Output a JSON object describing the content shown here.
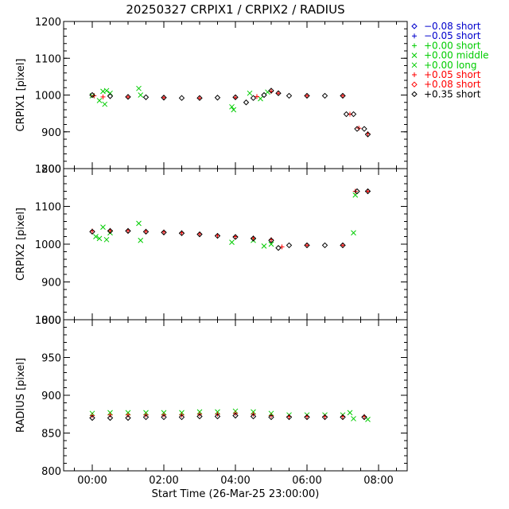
{
  "title": "20250327 CRPIX1 / CRPIX2 / RADIUS",
  "x_axis": {
    "label": "Start Time (26-Mar-25 23:00:00)",
    "range_hours": [
      -0.8,
      8.8
    ],
    "ticks": [
      {
        "hour": 0,
        "label": "00:00"
      },
      {
        "hour": 2,
        "label": "02:00"
      },
      {
        "hour": 4,
        "label": "04:00"
      },
      {
        "hour": 6,
        "label": "06:00"
      },
      {
        "hour": 8,
        "label": "08:00"
      }
    ]
  },
  "legend": {
    "placement": "right",
    "entries": [
      {
        "symbol": "◇",
        "label": "−0.08 short",
        "color": "#0000cc"
      },
      {
        "symbol": "+",
        "label": "−0.05 short",
        "color": "#0000cc"
      },
      {
        "symbol": "+",
        "label": "+0.00 short",
        "color": "#00cc00"
      },
      {
        "symbol": "×",
        "label": "+0.00 middle",
        "color": "#00cc00"
      },
      {
        "symbol": "×",
        "label": "+0.00 long",
        "color": "#00cc00"
      },
      {
        "symbol": "+",
        "label": "+0.05 short",
        "color": "#ff0000"
      },
      {
        "symbol": "◇",
        "label": "+0.08 short",
        "color": "#ff0000"
      },
      {
        "symbol": "◇",
        "label": "+0.35 short",
        "color": "#000000"
      }
    ]
  },
  "chart_data": [
    {
      "type": "scatter",
      "ylabel": "CRPIX1 [pixel]",
      "ylim": [
        800,
        1200
      ],
      "yticks": [
        800,
        900,
        1000,
        1100,
        1200
      ],
      "grid": false,
      "series": [
        {
          "name": "+0.00 middle",
          "color": "#00cc00",
          "points": [
            [
              0.0,
              998
            ],
            [
              0.2,
              985
            ],
            [
              0.3,
              1010
            ],
            [
              0.35,
              975
            ],
            [
              0.4,
              1012
            ],
            [
              0.5,
              1005
            ],
            [
              1.3,
              1018
            ],
            [
              1.35,
              1000
            ],
            [
              3.9,
              968
            ],
            [
              3.95,
              960
            ],
            [
              4.4,
              1005
            ],
            [
              4.7,
              990
            ],
            [
              4.9,
              1008
            ]
          ]
        },
        {
          "name": "+0.05 short",
          "color": "#ff0000",
          "points": [
            [
              0.05,
              998
            ],
            [
              0.3,
              995
            ],
            [
              1.0,
              995
            ],
            [
              2.0,
              993
            ],
            [
              3.0,
              992
            ],
            [
              4.0,
              993
            ],
            [
              4.6,
              996
            ],
            [
              5.0,
              1010
            ],
            [
              5.2,
              1005
            ],
            [
              6.0,
              998
            ],
            [
              7.0,
              998
            ],
            [
              7.2,
              948
            ],
            [
              7.45,
              910
            ],
            [
              7.7,
              895
            ]
          ]
        },
        {
          "name": "+0.35 short",
          "color": "#000000",
          "points": [
            [
              0.0,
              1000
            ],
            [
              0.5,
              997
            ],
            [
              1.0,
              995
            ],
            [
              1.5,
              994
            ],
            [
              2.0,
              993
            ],
            [
              2.5,
              992
            ],
            [
              3.0,
              992
            ],
            [
              3.5,
              993
            ],
            [
              4.0,
              994
            ],
            [
              4.3,
              980
            ],
            [
              4.5,
              992
            ],
            [
              4.8,
              1000
            ],
            [
              5.0,
              1012
            ],
            [
              5.2,
              1005
            ],
            [
              5.5,
              998
            ],
            [
              6.0,
              998
            ],
            [
              6.5,
              998
            ],
            [
              7.0,
              998
            ],
            [
              7.1,
              948
            ],
            [
              7.3,
              948
            ],
            [
              7.4,
              908
            ],
            [
              7.6,
              908
            ],
            [
              7.7,
              893
            ]
          ]
        }
      ]
    },
    {
      "type": "scatter",
      "ylabel": "CRPIX2 [pixel]",
      "ylim": [
        800,
        1200
      ],
      "yticks": [
        800,
        900,
        1000,
        1100,
        1200
      ],
      "grid": false,
      "series": [
        {
          "name": "+0.00 middle",
          "color": "#00cc00",
          "points": [
            [
              0.1,
              1020
            ],
            [
              0.2,
              1015
            ],
            [
              0.3,
              1045
            ],
            [
              0.4,
              1012
            ],
            [
              0.5,
              1030
            ],
            [
              1.3,
              1055
            ],
            [
              1.35,
              1010
            ],
            [
              3.9,
              1005
            ],
            [
              4.5,
              1010
            ],
            [
              4.8,
              995
            ],
            [
              5.0,
              1000
            ],
            [
              7.3,
              1030
            ],
            [
              7.35,
              1130
            ]
          ]
        },
        {
          "name": "+0.05 short",
          "color": "#ff0000",
          "points": [
            [
              0.0,
              1035
            ],
            [
              0.5,
              1036
            ],
            [
              1.0,
              1036
            ],
            [
              1.5,
              1034
            ],
            [
              2.0,
              1032
            ],
            [
              2.5,
              1030
            ],
            [
              3.0,
              1027
            ],
            [
              3.5,
              1023
            ],
            [
              4.0,
              1020
            ],
            [
              4.5,
              1016
            ],
            [
              5.0,
              1012
            ],
            [
              5.3,
              993
            ],
            [
              6.0,
              997
            ],
            [
              7.0,
              997
            ],
            [
              7.35,
              1140
            ],
            [
              7.7,
              1140
            ]
          ]
        },
        {
          "name": "+0.35 short",
          "color": "#000000",
          "points": [
            [
              0.0,
              1033
            ],
            [
              0.5,
              1035
            ],
            [
              1.0,
              1035
            ],
            [
              1.5,
              1033
            ],
            [
              2.0,
              1031
            ],
            [
              2.5,
              1029
            ],
            [
              3.0,
              1026
            ],
            [
              3.5,
              1022
            ],
            [
              4.0,
              1019
            ],
            [
              4.5,
              1015
            ],
            [
              5.0,
              1010
            ],
            [
              5.2,
              990
            ],
            [
              5.5,
              997
            ],
            [
              6.0,
              997
            ],
            [
              6.5,
              997
            ],
            [
              7.0,
              997
            ],
            [
              7.4,
              1140
            ],
            [
              7.7,
              1140
            ]
          ]
        }
      ]
    },
    {
      "type": "scatter",
      "ylabel": "RADIUS [pixel]",
      "ylim": [
        800,
        1000
      ],
      "yticks": [
        800,
        850,
        900,
        950,
        1000
      ],
      "grid": false,
      "series": [
        {
          "name": "+0.00 middle",
          "color": "#00cc00",
          "points": [
            [
              0.0,
              876
            ],
            [
              0.5,
              877
            ],
            [
              1.0,
              877
            ],
            [
              1.5,
              877
            ],
            [
              2.0,
              877
            ],
            [
              2.5,
              877
            ],
            [
              3.0,
              878
            ],
            [
              3.5,
              878
            ],
            [
              4.0,
              879
            ],
            [
              4.5,
              878
            ],
            [
              5.0,
              876
            ],
            [
              5.5,
              874
            ],
            [
              6.0,
              874
            ],
            [
              6.5,
              874
            ],
            [
              7.0,
              874
            ],
            [
              7.2,
              877
            ],
            [
              7.3,
              869
            ],
            [
              7.7,
              868
            ]
          ]
        },
        {
          "name": "+0.05 short",
          "color": "#ff0000",
          "points": [
            [
              0.0,
              873
            ],
            [
              0.5,
              874
            ],
            [
              1.0,
              874
            ],
            [
              1.5,
              874
            ],
            [
              2.0,
              874
            ],
            [
              2.5,
              874
            ],
            [
              3.0,
              875
            ],
            [
              3.5,
              875
            ],
            [
              4.0,
              876
            ],
            [
              4.5,
              875
            ],
            [
              5.0,
              873
            ],
            [
              5.5,
              872
            ],
            [
              6.0,
              872
            ],
            [
              6.5,
              872
            ],
            [
              7.0,
              872
            ],
            [
              7.6,
              872
            ]
          ]
        },
        {
          "name": "+0.35 short",
          "color": "#000000",
          "points": [
            [
              0.0,
              870
            ],
            [
              0.5,
              870
            ],
            [
              1.0,
              870
            ],
            [
              1.5,
              871
            ],
            [
              2.0,
              871
            ],
            [
              2.5,
              871
            ],
            [
              3.0,
              872
            ],
            [
              3.5,
              872
            ],
            [
              4.0,
              873
            ],
            [
              4.5,
              872
            ],
            [
              5.0,
              871
            ],
            [
              5.5,
              871
            ],
            [
              6.0,
              871
            ],
            [
              6.5,
              871
            ],
            [
              7.0,
              871
            ],
            [
              7.6,
              871
            ]
          ]
        }
      ]
    }
  ]
}
